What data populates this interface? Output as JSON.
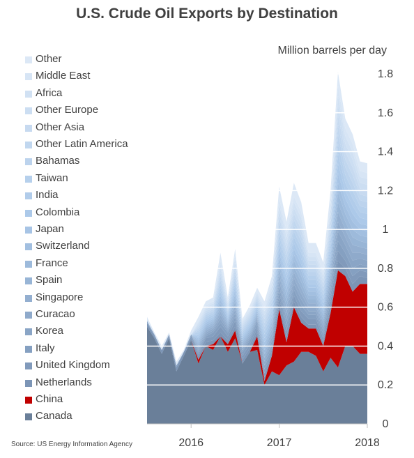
{
  "source": "Source: US Energy Information Agency",
  "colors": {
    "canada": "#6a7f99",
    "china": "#c00000",
    "ramp_dark": "#7c95b6",
    "ramp_light": "#dce8f6",
    "ramp_mid": "#a9c7e8",
    "grid": "#ffffff",
    "text": "#404040"
  },
  "chart_data": {
    "type": "area",
    "stacked": true,
    "title": "U.S. Crude Oil Exports by Destination",
    "ylabel": "Million barrels per day",
    "ylim": [
      0,
      1.8
    ],
    "yticks": [
      "0",
      "0.2",
      "0.4",
      "0.6",
      "0.8",
      "1",
      "1.2",
      "1.4",
      "1.6",
      "1.8"
    ],
    "ytick_values": [
      0,
      0.2,
      0.4,
      0.6,
      0.8,
      1.0,
      1.2,
      1.4,
      1.6,
      1.8
    ],
    "xlim": [
      "2015-07",
      "2018-01"
    ],
    "xticks": [
      "2016",
      "2017",
      "2018"
    ],
    "xtick_dates": [
      "2016-01",
      "2017-01",
      "2018-01"
    ],
    "grid": "horizontal",
    "legend_position": "left",
    "x": [
      "2015-07",
      "2015-08",
      "2015-09",
      "2015-10",
      "2015-11",
      "2015-12",
      "2016-01",
      "2016-02",
      "2016-03",
      "2016-04",
      "2016-05",
      "2016-06",
      "2016-07",
      "2016-08",
      "2016-09",
      "2016-10",
      "2016-11",
      "2016-12",
      "2017-01",
      "2017-02",
      "2017-03",
      "2017-04",
      "2017-05",
      "2017-06",
      "2017-07",
      "2017-08",
      "2017-09",
      "2017-10",
      "2017-11",
      "2017-12",
      "2018-01"
    ],
    "series": [
      {
        "name": "Canada",
        "values": [
          0.5,
          0.44,
          0.36,
          0.44,
          0.27,
          0.35,
          0.43,
          0.31,
          0.4,
          0.38,
          0.45,
          0.37,
          0.44,
          0.31,
          0.37,
          0.38,
          0.2,
          0.27,
          0.25,
          0.3,
          0.32,
          0.37,
          0.37,
          0.35,
          0.27,
          0.34,
          0.29,
          0.4,
          0.4,
          0.36,
          0.36
        ]
      },
      {
        "name": "China",
        "values": [
          0,
          0,
          0,
          0,
          0,
          0,
          0,
          0.02,
          0,
          0.03,
          0,
          0.04,
          0.04,
          0,
          0,
          0.07,
          0.02,
          0.08,
          0.34,
          0.12,
          0.28,
          0.15,
          0.12,
          0.14,
          0.13,
          0.23,
          0.5,
          0.36,
          0.28,
          0.36,
          0.36
        ]
      },
      {
        "name": "Netherlands",
        "values": [
          0.02,
          0.01,
          0.02,
          0.01,
          0.02,
          0.02,
          0.01,
          0.02,
          0.02,
          0.02,
          0.02,
          0.02,
          0.02,
          0.02,
          0.02,
          0.02,
          0.02,
          0.02,
          0.03,
          0.03,
          0.03,
          0.03,
          0.02,
          0.02,
          0.02,
          0.03,
          0.05,
          0.04,
          0.04,
          0.04,
          0.03
        ]
      },
      {
        "name": "United Kingdom",
        "values": [
          0,
          0.01,
          0,
          0.01,
          0,
          0,
          0.01,
          0.01,
          0.02,
          0.02,
          0.03,
          0.02,
          0.03,
          0.02,
          0.02,
          0.02,
          0.02,
          0.02,
          0.03,
          0.03,
          0.03,
          0.03,
          0.03,
          0.03,
          0.02,
          0.03,
          0.05,
          0.04,
          0.04,
          0.03,
          0.03
        ]
      },
      {
        "name": "Italy",
        "values": [
          0,
          0,
          0,
          0,
          0.01,
          0,
          0.01,
          0.01,
          0.01,
          0.02,
          0.02,
          0.02,
          0.02,
          0.02,
          0.02,
          0.02,
          0.02,
          0.02,
          0.03,
          0.03,
          0.03,
          0.03,
          0.02,
          0.02,
          0.02,
          0.03,
          0.05,
          0.04,
          0.04,
          0.03,
          0.03
        ]
      },
      {
        "name": "Korea",
        "values": [
          0,
          0,
          0,
          0,
          0,
          0,
          0,
          0.01,
          0.01,
          0.01,
          0.02,
          0.01,
          0.02,
          0.01,
          0.01,
          0.02,
          0.02,
          0.02,
          0.03,
          0.03,
          0.03,
          0.03,
          0.02,
          0.02,
          0.02,
          0.03,
          0.05,
          0.04,
          0.04,
          0.03,
          0.03
        ]
      },
      {
        "name": "Curacao",
        "values": [
          0.01,
          0,
          0,
          0,
          0,
          0,
          0,
          0.01,
          0.01,
          0.01,
          0.02,
          0.01,
          0.02,
          0.01,
          0.01,
          0.01,
          0.02,
          0.02,
          0.03,
          0.03,
          0.03,
          0.03,
          0.02,
          0.02,
          0.02,
          0.03,
          0.05,
          0.04,
          0.04,
          0.03,
          0.03
        ]
      },
      {
        "name": "Singapore",
        "values": [
          0,
          0,
          0,
          0,
          0,
          0,
          0,
          0.01,
          0.01,
          0.01,
          0.02,
          0.01,
          0.02,
          0.01,
          0.01,
          0.01,
          0.02,
          0.02,
          0.03,
          0.03,
          0.03,
          0.03,
          0.02,
          0.02,
          0.02,
          0.03,
          0.05,
          0.04,
          0.04,
          0.03,
          0.03
        ]
      },
      {
        "name": "Spain",
        "values": [
          0,
          0,
          0,
          0,
          0,
          0,
          0,
          0.01,
          0.01,
          0.01,
          0.02,
          0.01,
          0.02,
          0.01,
          0.01,
          0.01,
          0.02,
          0.02,
          0.03,
          0.03,
          0.03,
          0.03,
          0.02,
          0.02,
          0.02,
          0.03,
          0.05,
          0.04,
          0.04,
          0.03,
          0.03
        ]
      },
      {
        "name": "France",
        "values": [
          0,
          0,
          0,
          0,
          0,
          0,
          0,
          0.01,
          0.01,
          0.01,
          0.02,
          0.01,
          0.02,
          0.01,
          0.01,
          0.01,
          0.02,
          0.02,
          0.03,
          0.03,
          0.03,
          0.03,
          0.02,
          0.02,
          0.02,
          0.03,
          0.05,
          0.04,
          0.04,
          0.03,
          0.03
        ]
      },
      {
        "name": "Switzerland",
        "values": [
          0,
          0,
          0,
          0,
          0,
          0,
          0,
          0.01,
          0.01,
          0.01,
          0.02,
          0.01,
          0.02,
          0.01,
          0.01,
          0.01,
          0.02,
          0.02,
          0.03,
          0.03,
          0.03,
          0.03,
          0.02,
          0.02,
          0.02,
          0.03,
          0.05,
          0.04,
          0.04,
          0.03,
          0.03
        ]
      },
      {
        "name": "Japan",
        "values": [
          0,
          0,
          0,
          0,
          0,
          0,
          0,
          0.01,
          0.01,
          0.01,
          0.02,
          0.01,
          0.02,
          0.01,
          0.01,
          0.01,
          0.02,
          0.02,
          0.03,
          0.03,
          0.03,
          0.03,
          0.02,
          0.02,
          0.02,
          0.03,
          0.05,
          0.04,
          0.04,
          0.03,
          0.03
        ]
      },
      {
        "name": "Colombia",
        "values": [
          0,
          0,
          0,
          0,
          0,
          0,
          0,
          0.01,
          0.01,
          0.01,
          0.02,
          0.01,
          0.02,
          0.01,
          0.01,
          0.01,
          0.02,
          0.02,
          0.03,
          0.03,
          0.03,
          0.03,
          0.02,
          0.02,
          0.02,
          0.03,
          0.05,
          0.04,
          0.04,
          0.03,
          0.03
        ]
      },
      {
        "name": "India",
        "values": [
          0,
          0,
          0,
          0,
          0,
          0,
          0,
          0.01,
          0.01,
          0.01,
          0.02,
          0.01,
          0.02,
          0.01,
          0.01,
          0.01,
          0.02,
          0.02,
          0.03,
          0.03,
          0.03,
          0.03,
          0.02,
          0.02,
          0.02,
          0.03,
          0.05,
          0.04,
          0.04,
          0.03,
          0.03
        ]
      },
      {
        "name": "Taiwan",
        "values": [
          0,
          0,
          0,
          0,
          0,
          0,
          0,
          0.01,
          0.01,
          0.01,
          0.02,
          0.01,
          0.02,
          0.01,
          0.01,
          0.01,
          0.02,
          0.02,
          0.03,
          0.03,
          0.03,
          0.03,
          0.02,
          0.02,
          0.02,
          0.03,
          0.05,
          0.04,
          0.04,
          0.03,
          0.03
        ]
      },
      {
        "name": "Bahamas",
        "values": [
          0,
          0,
          0,
          0,
          0,
          0,
          0,
          0.01,
          0.01,
          0.01,
          0.02,
          0.01,
          0.02,
          0.01,
          0.01,
          0.01,
          0.02,
          0.02,
          0.03,
          0.03,
          0.03,
          0.03,
          0.02,
          0.02,
          0.02,
          0.03,
          0.05,
          0.04,
          0.04,
          0.03,
          0.03
        ]
      },
      {
        "name": "Other Latin America",
        "values": [
          0,
          0,
          0,
          0,
          0,
          0,
          0,
          0.01,
          0.01,
          0.01,
          0.02,
          0.01,
          0.02,
          0.01,
          0.01,
          0.01,
          0.02,
          0.02,
          0.03,
          0.03,
          0.03,
          0.03,
          0.02,
          0.02,
          0.02,
          0.03,
          0.05,
          0.04,
          0.04,
          0.03,
          0.03
        ]
      },
      {
        "name": "Other Asia",
        "values": [
          0,
          0,
          0,
          0,
          0,
          0,
          0,
          0.01,
          0.01,
          0.01,
          0.02,
          0.01,
          0.02,
          0.01,
          0.01,
          0.01,
          0.02,
          0.02,
          0.03,
          0.03,
          0.03,
          0.03,
          0.02,
          0.02,
          0.02,
          0.03,
          0.05,
          0.04,
          0.04,
          0.03,
          0.03
        ]
      },
      {
        "name": "Other Europe",
        "values": [
          0,
          0,
          0,
          0,
          0,
          0,
          0,
          0.01,
          0.01,
          0.01,
          0.02,
          0.01,
          0.02,
          0.01,
          0.01,
          0.01,
          0.02,
          0.02,
          0.03,
          0.03,
          0.03,
          0.03,
          0.02,
          0.02,
          0.02,
          0.03,
          0.05,
          0.04,
          0.04,
          0.03,
          0.03
        ]
      },
      {
        "name": "Africa",
        "values": [
          0,
          0,
          0,
          0,
          0,
          0,
          0,
          0.01,
          0.01,
          0.01,
          0.02,
          0.01,
          0.02,
          0.01,
          0.01,
          0.01,
          0.02,
          0.02,
          0.03,
          0.03,
          0.03,
          0.03,
          0.02,
          0.02,
          0.02,
          0.03,
          0.05,
          0.04,
          0.04,
          0.03,
          0.03
        ]
      },
      {
        "name": "Middle East",
        "values": [
          0,
          0,
          0,
          0,
          0,
          0,
          0,
          0.01,
          0.01,
          0.01,
          0.02,
          0.01,
          0.02,
          0.01,
          0.01,
          0.01,
          0.02,
          0.02,
          0.03,
          0.03,
          0.03,
          0.03,
          0.02,
          0.02,
          0.02,
          0.03,
          0.05,
          0.04,
          0.04,
          0.03,
          0.03
        ]
      },
      {
        "name": "Other",
        "values": [
          0.02,
          0.01,
          0.02,
          0.01,
          0.02,
          0.01,
          0.02,
          0.02,
          0.02,
          0.02,
          0.04,
          0.02,
          0.03,
          0.01,
          0.02,
          0.02,
          0.03,
          0.03,
          0.06,
          0.05,
          0.07,
          0.05,
          0.05,
          0.05,
          0.05,
          0.06,
          0.07,
          0.05,
          0.05,
          0.05,
          0.05
        ]
      }
    ]
  }
}
